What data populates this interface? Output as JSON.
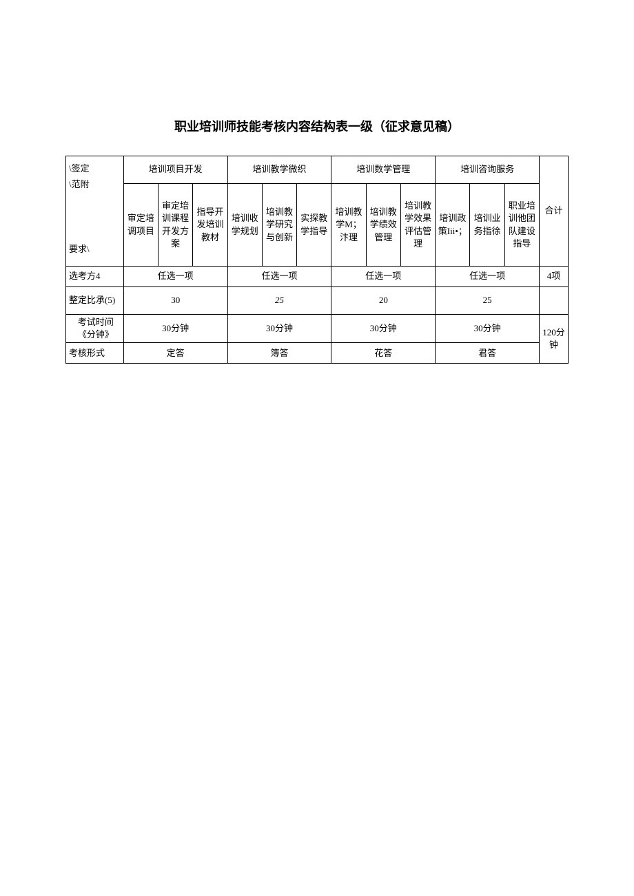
{
  "title": "职业培训师技能考核内容结构表一级（征求意见稿）",
  "diag_cell": "\\签定\n\\范附\n\n\n\n要求\\",
  "groups": {
    "g1": "培训项目开发",
    "g2": "培训教学微织",
    "g3": "培训数学管理",
    "g4": "培训咨询服务",
    "total": "合计"
  },
  "subs": {
    "s1": "审定培调项目",
    "s2": "审定培训课程开发方案",
    "s3": "指导开发培训教材",
    "s4": "培训收学规划",
    "s5": "培训教学研究与创新",
    "s6": "实探教学指导",
    "s7": "培训教学M；汴理",
    "s8": "培训教学绩效管理",
    "s9": "培训教学效果评估管理",
    "s10": "培训政策Iii•；",
    "s11": "培训业务指徐",
    "s12": "职业培训他团队建设指导"
  },
  "rows": {
    "r1": {
      "label": "选考方4",
      "v1": "任选一项",
      "v2": "任选一项",
      "v3": "任选一项",
      "v4": "任选一项",
      "total": "4项"
    },
    "r2": {
      "label": "整定比承(5)",
      "v1": "30",
      "v2": "25",
      "v3": "20",
      "v4": "25",
      "total": ""
    },
    "r3": {
      "label": "考试时间《分钟》",
      "v1": "30分钟",
      "v2": "30分钟",
      "v3": "30分钟",
      "v4": "30分钟",
      "total": "120分钟"
    },
    "r4": {
      "label": "考核形式",
      "v1": "定答",
      "v2": "簿答",
      "v3": "花答",
      "v4": "君答",
      "total": ""
    }
  },
  "style": {
    "bg": "#ffffff",
    "border": "#000000",
    "text": "#000000",
    "title_fontsize": 18,
    "cell_fontsize": 13
  }
}
